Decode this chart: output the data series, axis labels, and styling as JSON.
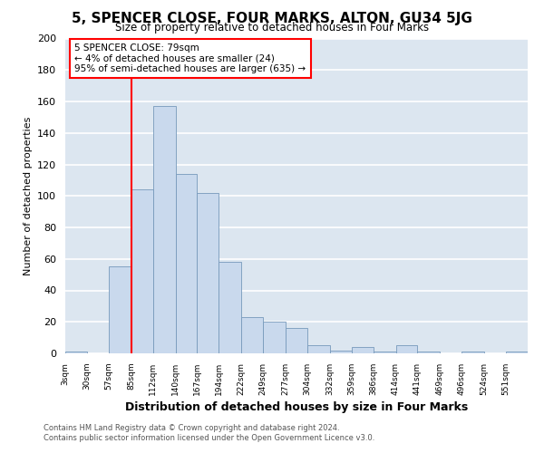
{
  "title": "5, SPENCER CLOSE, FOUR MARKS, ALTON, GU34 5JG",
  "subtitle": "Size of property relative to detached houses in Four Marks",
  "xlabel": "Distribution of detached houses by size in Four Marks",
  "ylabel": "Number of detached properties",
  "bar_color": "#c9d9ed",
  "bar_edge_color": "#7799bb",
  "bg_color": "#dce6f0",
  "grid_color": "#ffffff",
  "fig_bg_color": "#ffffff",
  "bins": [
    3,
    30,
    57,
    85,
    112,
    140,
    167,
    194,
    222,
    249,
    277,
    304,
    332,
    359,
    386,
    414,
    441,
    469,
    496,
    524,
    551,
    578
  ],
  "bin_labels": [
    "3sqm",
    "30sqm",
    "57sqm",
    "85sqm",
    "112sqm",
    "140sqm",
    "167sqm",
    "194sqm",
    "222sqm",
    "249sqm",
    "277sqm",
    "304sqm",
    "332sqm",
    "359sqm",
    "386sqm",
    "414sqm",
    "441sqm",
    "469sqm",
    "496sqm",
    "524sqm",
    "551sqm"
  ],
  "values": [
    1,
    0,
    55,
    104,
    157,
    114,
    102,
    58,
    23,
    20,
    16,
    5,
    2,
    4,
    1,
    5,
    1,
    0,
    1,
    0,
    1
  ],
  "vline_x": 85,
  "ylim": [
    0,
    200
  ],
  "yticks": [
    0,
    20,
    40,
    60,
    80,
    100,
    120,
    140,
    160,
    180,
    200
  ],
  "annotation_title": "5 SPENCER CLOSE: 79sqm",
  "annotation_line1": "← 4% of detached houses are smaller (24)",
  "annotation_line2": "95% of semi-detached houses are larger (635) →",
  "footer1": "Contains HM Land Registry data © Crown copyright and database right 2024.",
  "footer2": "Contains public sector information licensed under the Open Government Licence v3.0."
}
